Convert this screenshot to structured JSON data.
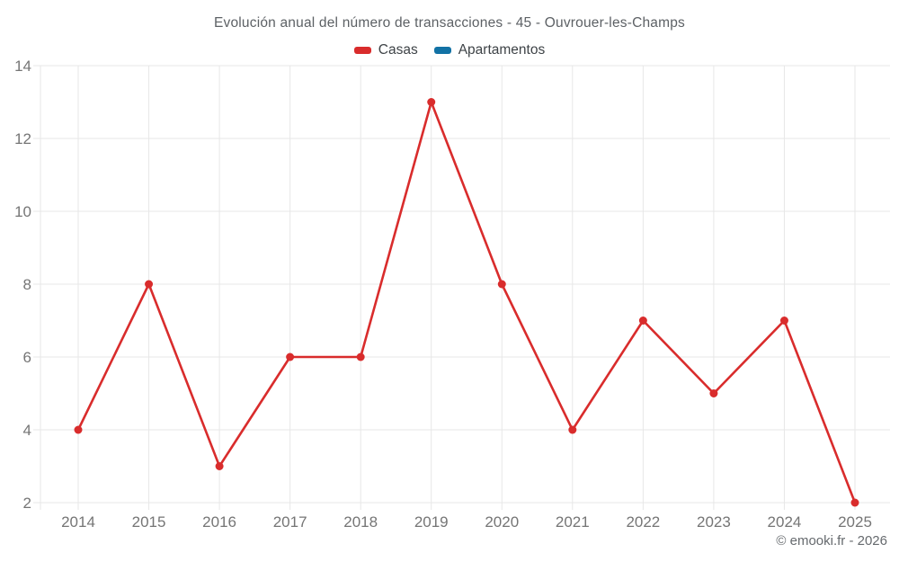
{
  "header": {
    "title": "Evolución anual del número de transacciones - 45 - Ouvrouer-les-Champs"
  },
  "footer": {
    "copyright": "© emooki.fr - 2026"
  },
  "colors": {
    "casas": "#d92c2c",
    "apartamentos": "#1272a5",
    "gridline": "#e7e7e7",
    "axis_text": "#757575"
  },
  "chart_data": {
    "type": "line",
    "title": "Evolución anual del número de transacciones - 45 - Ouvrouer-les-Champs",
    "categories": [
      "2014",
      "2015",
      "2016",
      "2017",
      "2018",
      "2019",
      "2020",
      "2021",
      "2022",
      "2023",
      "2024",
      "2025"
    ],
    "series": [
      {
        "name": "Casas",
        "color": "#d92c2c",
        "values": [
          4,
          8,
          3,
          6,
          6,
          13,
          8,
          4,
          7,
          5,
          7,
          2
        ]
      },
      {
        "name": "Apartamentos",
        "color": "#1272a5",
        "values": []
      }
    ],
    "xlabel": "",
    "ylabel": "",
    "ylim": [
      2,
      14
    ],
    "y_ticks": [
      2,
      4,
      6,
      8,
      10,
      12,
      14
    ],
    "grid": true,
    "legend_position": "top"
  }
}
